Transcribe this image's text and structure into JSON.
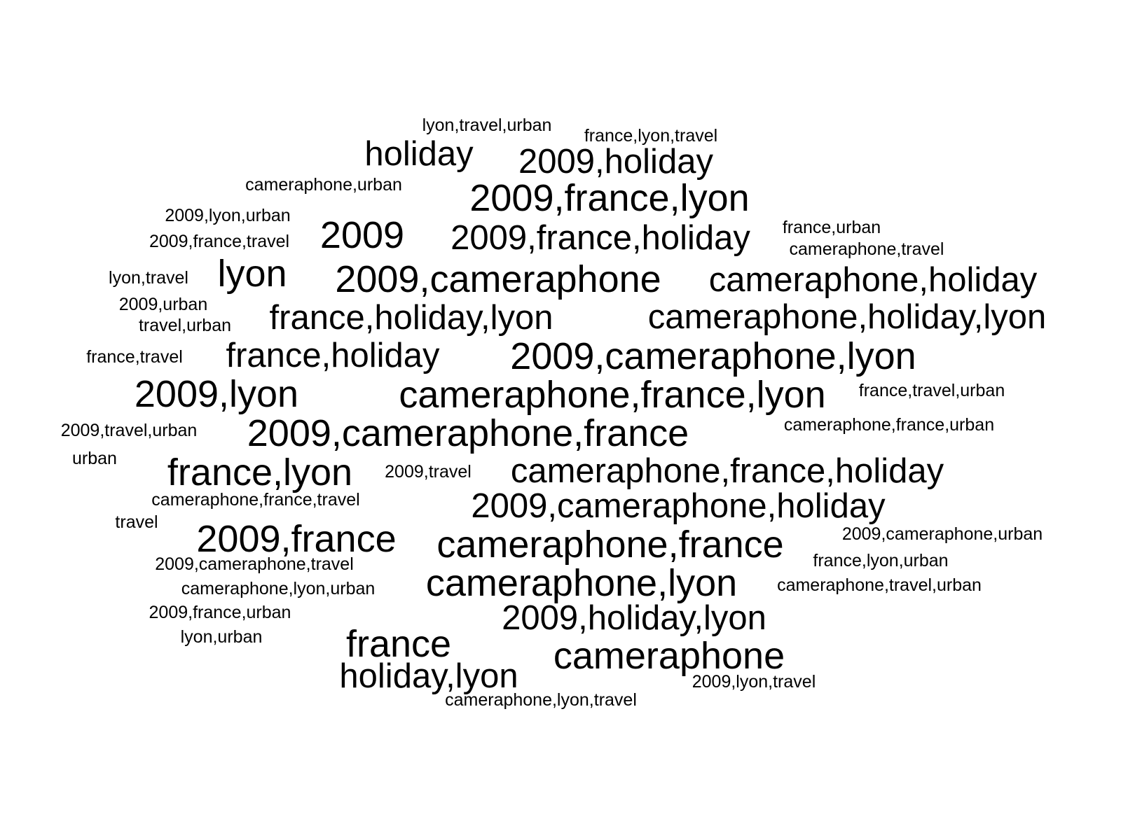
{
  "text_color": "#000000",
  "background_color": "#ffffff",
  "words": [
    {
      "text": "lyon,travel,urban",
      "size": "small"
    },
    {
      "text": "france,lyon,travel",
      "size": "small"
    },
    {
      "text": "holiday",
      "size": "large"
    },
    {
      "text": "2009,holiday",
      "size": "large"
    },
    {
      "text": "cameraphone,urban",
      "size": "small"
    },
    {
      "text": "2009,france,lyon",
      "size": "xlarge"
    },
    {
      "text": "2009,lyon,urban",
      "size": "small"
    },
    {
      "text": "2009",
      "size": "xlarge"
    },
    {
      "text": "2009,france,holiday",
      "size": "large"
    },
    {
      "text": "france,urban",
      "size": "small"
    },
    {
      "text": "2009,france,travel",
      "size": "small"
    },
    {
      "text": "cameraphone,travel",
      "size": "small"
    },
    {
      "text": "lyon,travel",
      "size": "small"
    },
    {
      "text": "lyon",
      "size": "xlarge"
    },
    {
      "text": "2009,cameraphone",
      "size": "large"
    },
    {
      "text": "cameraphone,holiday",
      "size": "large"
    },
    {
      "text": "2009,urban",
      "size": "small"
    },
    {
      "text": "france,holiday,lyon",
      "size": "large"
    },
    {
      "text": "cameraphone,holiday,lyon",
      "size": "large"
    },
    {
      "text": "travel,urban",
      "size": "small"
    },
    {
      "text": "france,travel",
      "size": "small"
    },
    {
      "text": "france,holiday",
      "size": "large"
    },
    {
      "text": "2009,cameraphone,lyon",
      "size": "large"
    },
    {
      "text": "2009,lyon",
      "size": "large"
    },
    {
      "text": "cameraphone,france,lyon",
      "size": "large"
    },
    {
      "text": "france,travel,urban",
      "size": "small"
    },
    {
      "text": "2009,travel,urban",
      "size": "small"
    },
    {
      "text": "2009,cameraphone,france",
      "size": "large"
    },
    {
      "text": "cameraphone,france,urban",
      "size": "small"
    },
    {
      "text": "urban",
      "size": "small"
    },
    {
      "text": "france,lyon",
      "size": "large"
    },
    {
      "text": "2009,travel",
      "size": "small"
    },
    {
      "text": "cameraphone,france,holiday",
      "size": "large"
    },
    {
      "text": "cameraphone,france,travel",
      "size": "small"
    },
    {
      "text": "2009,cameraphone,holiday",
      "size": "large"
    },
    {
      "text": "travel",
      "size": "small"
    },
    {
      "text": "2009,france",
      "size": "large"
    },
    {
      "text": "cameraphone,france",
      "size": "large"
    },
    {
      "text": "2009,cameraphone,urban",
      "size": "small"
    },
    {
      "text": "2009,cameraphone,travel",
      "size": "small"
    },
    {
      "text": "france,lyon,urban",
      "size": "small"
    },
    {
      "text": "cameraphone,lyon",
      "size": "large"
    },
    {
      "text": "cameraphone,lyon,urban",
      "size": "small"
    },
    {
      "text": "cameraphone,travel,urban",
      "size": "small"
    },
    {
      "text": "2009,holiday,lyon",
      "size": "large"
    },
    {
      "text": "2009,france,urban",
      "size": "small"
    },
    {
      "text": "france",
      "size": "large"
    },
    {
      "text": "cameraphone",
      "size": "large"
    },
    {
      "text": "lyon,urban",
      "size": "small"
    },
    {
      "text": "holiday,lyon",
      "size": "large"
    },
    {
      "text": "2009,lyon,travel",
      "size": "small"
    },
    {
      "text": "cameraphone,lyon,travel",
      "size": "small"
    }
  ]
}
